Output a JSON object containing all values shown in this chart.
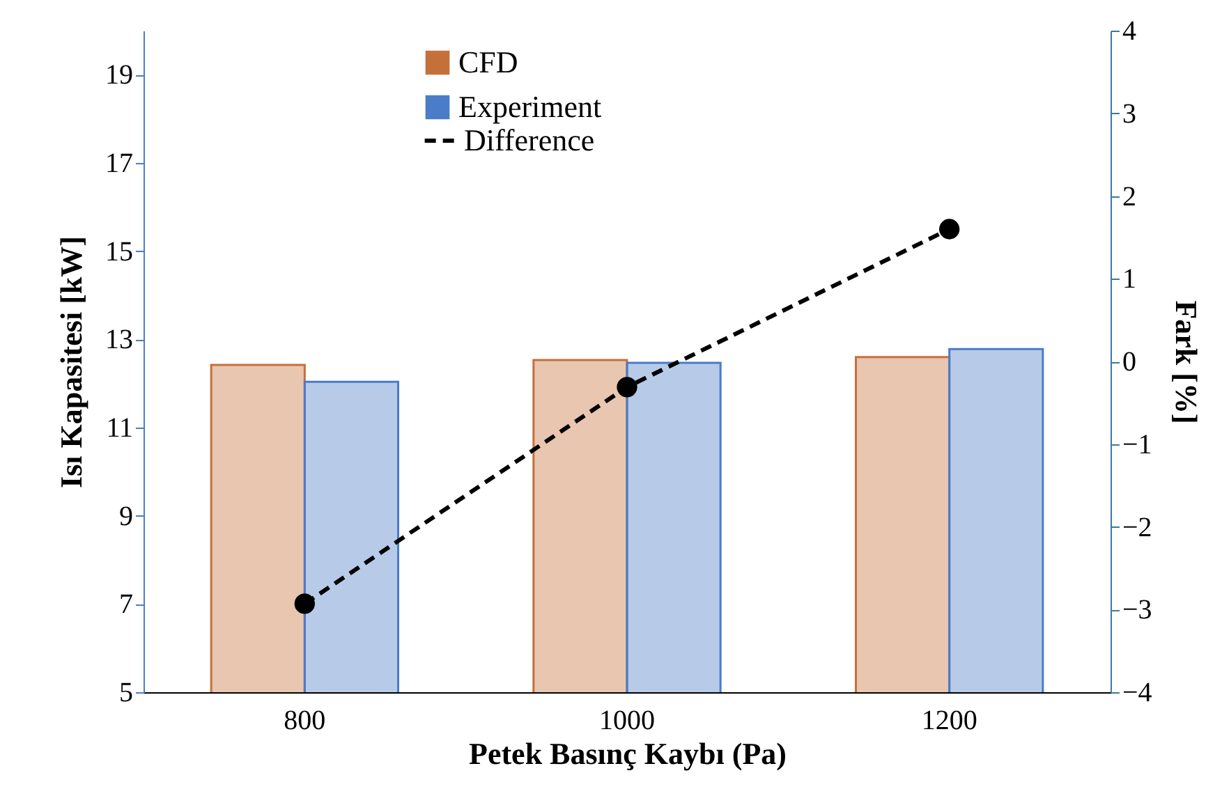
{
  "chart_data": {
    "type": "bar",
    "xlabel": "Petek Basınç Kaybı (Pa)",
    "ylabel": "Isı Kapasitesi [kW]",
    "y2label": "Fark [%]",
    "categories": [
      "800",
      "1000",
      "1200"
    ],
    "series": [
      {
        "name": "CFD",
        "color": "#c5703a",
        "values": [
          12.42,
          12.53,
          12.6
        ]
      },
      {
        "name": "Experiment",
        "color": "#4a7cc8",
        "values": [
          12.04,
          12.47,
          12.78
        ]
      },
      {
        "name": "Difference",
        "type": "line",
        "axis": "y2",
        "color": "#000000",
        "values": [
          -2.93,
          -0.31,
          1.6
        ],
        "marker": "circle",
        "line_style": "dashed"
      }
    ],
    "ylim": [
      5,
      20
    ],
    "yticks": [
      5,
      7,
      9,
      11,
      13,
      15,
      17,
      19
    ],
    "y2lim": [
      -4,
      4
    ],
    "y2ticks": [
      -4,
      -3,
      -2,
      -1,
      0,
      1,
      2,
      3,
      4
    ],
    "legend": "top",
    "grid": false
  }
}
